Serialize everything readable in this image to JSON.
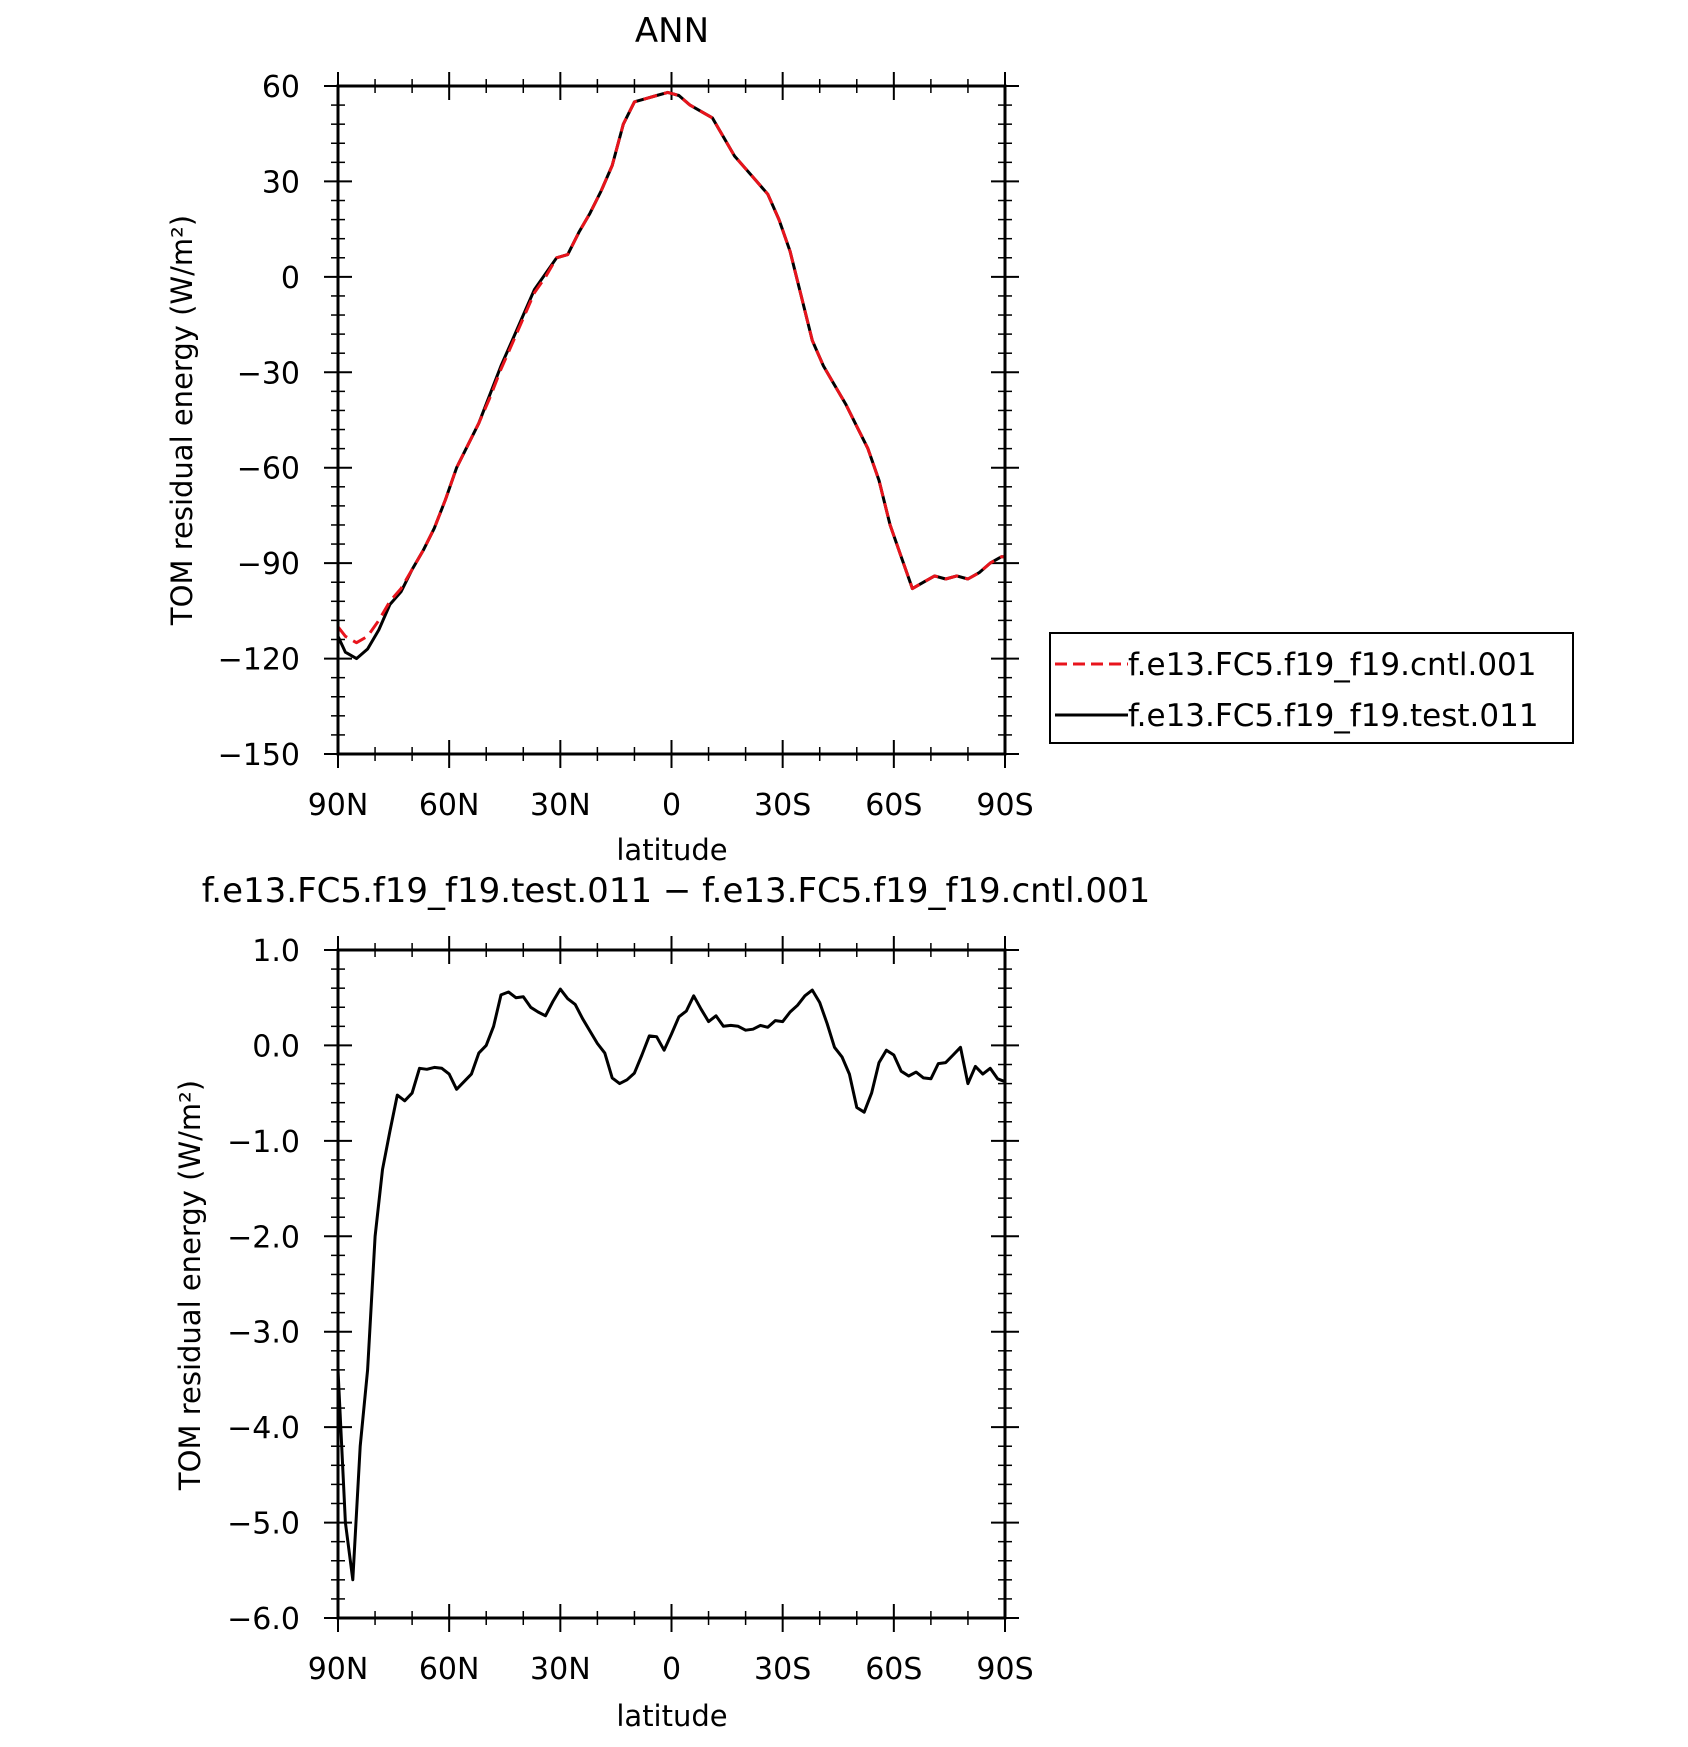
{
  "chart_data": [
    {
      "type": "line",
      "title": "ANN",
      "xlabel": "latitude",
      "ylabel": "TOM residual energy (W/m²)",
      "xlim": [
        90,
        -90
      ],
      "ylim": [
        -150,
        60
      ],
      "yticks": [
        60,
        30,
        0,
        -30,
        -60,
        -90,
        -120,
        -150
      ],
      "yticklabels": [
        "60",
        "30",
        "0",
        "−30",
        "−60",
        "−90",
        "−120",
        "−150"
      ],
      "xticks": [
        90,
        60,
        30,
        0,
        -30,
        -60,
        -90
      ],
      "xticklabels": [
        "90N",
        "60N",
        "30N",
        "0",
        "30S",
        "60S",
        "90S"
      ],
      "grid": false,
      "legend_position": "right",
      "series": [
        {
          "name": "f.e13.FC5.f19_f19.cntl.001",
          "color": "#e8141c",
          "dash": "dashed",
          "x": [
            90,
            88,
            85,
            82,
            79,
            76,
            73,
            70,
            67,
            64,
            61,
            58,
            55,
            52,
            49,
            46,
            43,
            40,
            37,
            34,
            31,
            28,
            25,
            22,
            19,
            16,
            13,
            10,
            7,
            4,
            1,
            -2,
            -5,
            -8,
            -11,
            -14,
            -17,
            -20,
            -23,
            -26,
            -29,
            -32,
            -35,
            -38,
            -41,
            -44,
            -47,
            -50,
            -53,
            -56,
            -59,
            -62,
            -65,
            -68,
            -71,
            -74,
            -77,
            -80,
            -83,
            -86,
            -89,
            -90
          ],
          "y": [
            -110,
            -113,
            -115,
            -113,
            -108,
            -102,
            -98,
            -92,
            -86,
            -79,
            -70,
            -60,
            -53,
            -46,
            -38,
            -29,
            -21,
            -13,
            -5,
            0,
            6,
            7,
            14,
            20,
            27,
            35,
            48,
            55,
            56,
            57,
            58,
            57,
            54,
            52,
            50,
            44,
            38,
            34,
            30,
            26,
            18,
            8,
            -6,
            -20,
            -28,
            -34,
            -40,
            -47,
            -54,
            -64,
            -78,
            -88,
            -98,
            -96,
            -94,
            -95,
            -94,
            -95,
            -93,
            -90,
            -88,
            -88
          ]
        },
        {
          "name": "f.e13.FC5.f19_f19.test.011",
          "color": "#000000",
          "dash": "solid",
          "x": [
            90,
            88,
            85,
            82,
            79,
            76,
            73,
            70,
            67,
            64,
            61,
            58,
            55,
            52,
            49,
            46,
            43,
            40,
            37,
            34,
            31,
            28,
            25,
            22,
            19,
            16,
            13,
            10,
            7,
            4,
            1,
            -2,
            -5,
            -8,
            -11,
            -14,
            -17,
            -20,
            -23,
            -26,
            -29,
            -32,
            -35,
            -38,
            -41,
            -44,
            -47,
            -50,
            -53,
            -56,
            -59,
            -62,
            -65,
            -68,
            -71,
            -74,
            -77,
            -80,
            -83,
            -86,
            -89,
            -90
          ],
          "y": [
            -113,
            -118,
            -120,
            -117,
            -111,
            -103,
            -99,
            -92,
            -86,
            -79,
            -70,
            -60,
            -53,
            -46,
            -37,
            -28,
            -20,
            -12,
            -4,
            1,
            6,
            7,
            14,
            20,
            27,
            35,
            48,
            55,
            56,
            57,
            58,
            57,
            54,
            52,
            50,
            44,
            38,
            34,
            30,
            26,
            18,
            8,
            -6,
            -20,
            -28,
            -34,
            -40,
            -47,
            -54,
            -64,
            -78,
            -88,
            -98,
            -96,
            -94,
            -95,
            -94,
            -95,
            -93,
            -90,
            -88,
            -88
          ]
        }
      ]
    },
    {
      "type": "line",
      "title": "f.e13.FC5.f19_f19.test.011 − f.e13.FC5.f19_f19.cntl.001",
      "xlabel": "latitude",
      "ylabel": "TOM residual energy (W/m²)",
      "xlim": [
        90,
        -90
      ],
      "ylim": [
        -6,
        1
      ],
      "yticks": [
        1,
        0,
        -1,
        -2,
        -3,
        -4,
        -5,
        -6
      ],
      "yticklabels": [
        "1.0",
        "0.0",
        "−1.0",
        "−2.0",
        "−3.0",
        "−4.0",
        "−5.0",
        "−6.0"
      ],
      "xticks": [
        90,
        60,
        30,
        0,
        -30,
        -60,
        -90
      ],
      "xticklabels": [
        "90N",
        "60N",
        "30N",
        "0",
        "30S",
        "60S",
        "90S"
      ],
      "grid": false,
      "series": [
        {
          "color": "#000000",
          "x": [
            90,
            88,
            86,
            84,
            82,
            80,
            78,
            76,
            74,
            72,
            70,
            68,
            66,
            64,
            62,
            60,
            58,
            56,
            54,
            52,
            50,
            48,
            46,
            44,
            42,
            40,
            38,
            36,
            34,
            32,
            30,
            28,
            26,
            24,
            22,
            20,
            18,
            16,
            14,
            12,
            10,
            8,
            6,
            4,
            2,
            0,
            -2,
            -4,
            -6,
            -8,
            -10,
            -12,
            -14,
            -16,
            -18,
            -20,
            -22,
            -24,
            -26,
            -28,
            -30,
            -32,
            -34,
            -36,
            -38,
            -40,
            -42,
            -44,
            -46,
            -48,
            -50,
            -52,
            -54,
            -56,
            -58,
            -60,
            -62,
            -64,
            -66,
            -68,
            -70,
            -72,
            -74,
            -76,
            -78,
            -80,
            -82,
            -84,
            -86,
            -88,
            -90
          ],
          "y": [
            -3.4,
            -5.0,
            -5.6,
            -4.2,
            -3.4,
            -2.0,
            -1.3,
            -0.9,
            -0.52,
            -0.58,
            -0.5,
            -0.24,
            -0.25,
            -0.23,
            -0.24,
            -0.3,
            -0.46,
            -0.38,
            -0.3,
            -0.08,
            0.0,
            0.2,
            0.53,
            0.56,
            0.5,
            0.51,
            0.4,
            0.35,
            0.31,
            0.46,
            0.59,
            0.49,
            0.43,
            0.28,
            0.15,
            0.02,
            -0.08,
            -0.34,
            -0.4,
            -0.36,
            -0.29,
            -0.1,
            0.1,
            0.09,
            -0.05,
            0.12,
            0.3,
            0.36,
            0.52,
            0.38,
            0.25,
            0.31,
            0.2,
            0.21,
            0.2,
            0.16,
            0.17,
            0.21,
            0.19,
            0.26,
            0.25,
            0.35,
            0.42,
            0.52,
            0.58,
            0.45,
            0.23,
            -0.02,
            -0.12,
            -0.3,
            -0.65,
            -0.7,
            -0.5,
            -0.18,
            -0.05,
            -0.1,
            -0.27,
            -0.32,
            -0.28,
            -0.34,
            -0.35,
            -0.19,
            -0.18,
            -0.1,
            -0.02,
            -0.4,
            -0.22,
            -0.3,
            -0.24,
            -0.35,
            -0.38
          ]
        }
      ]
    }
  ]
}
